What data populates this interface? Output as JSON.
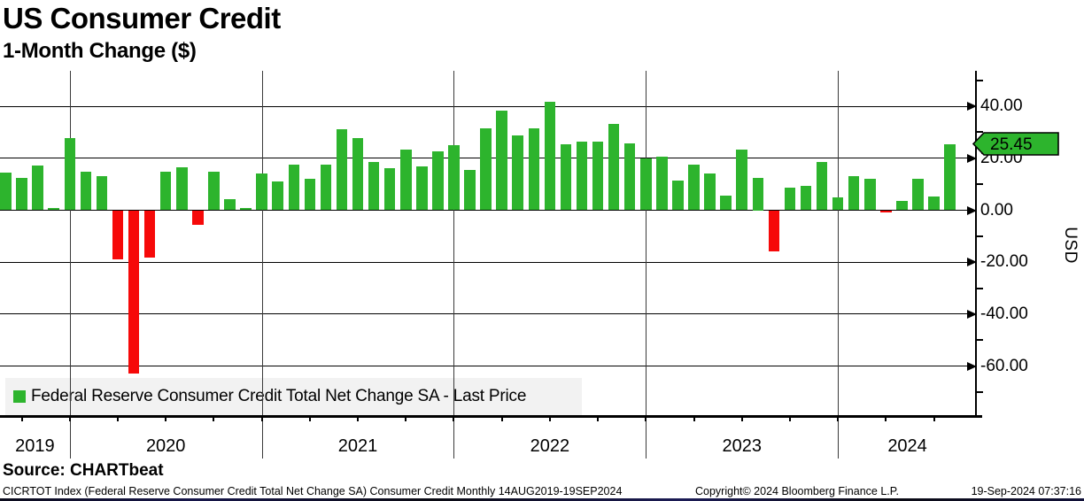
{
  "header": {
    "title": "US Consumer Credit",
    "subtitle": "1-Month Change ($)"
  },
  "legend": {
    "label": "Federal Reserve Consumer Credit Total Net Change SA - Last Price"
  },
  "y_axis": {
    "unit_label": "USD",
    "tick_labels": [
      "40.00",
      "20.00",
      "0.00",
      "-20.00",
      "-40.00",
      "-60.00"
    ],
    "tick_values": [
      40,
      20,
      0,
      -20,
      -40,
      -60
    ],
    "minor_tick_values": [
      50,
      30,
      10,
      -10,
      -30,
      -50,
      -70
    ]
  },
  "x_axis": {
    "year_labels": [
      "2019",
      "2020",
      "2021",
      "2022",
      "2023",
      "2024"
    ]
  },
  "last_price_badge": {
    "value": "25.45"
  },
  "footer": {
    "source": "Source: CHARTbeat",
    "description": "CICRTOT Index (Federal Reserve Consumer Credit Total Net Change SA) Consumer Credit  Monthly 14AUG2019-19SEP2024",
    "copyright": "Copyright© 2024 Bloomberg Finance L.P.",
    "timestamp": "19-Sep-2024 07:37:16"
  },
  "colors": {
    "positive": "#2db42d",
    "negative": "#f60909",
    "legend_background": "#f2f2f2",
    "badge_fill": "#2db42d"
  },
  "chart_data": {
    "type": "bar",
    "title": "US Consumer Credit",
    "subtitle": "1-Month Change ($)",
    "xlabel": "",
    "ylabel": "USD",
    "ylim": [
      -79,
      51
    ],
    "grid": true,
    "legend_position": "bottom-left",
    "series_name": "Federal Reserve Consumer Credit Total Net Change SA - Last Price",
    "last_price": 25.45,
    "frequency": "Monthly",
    "categories": [
      "Aug 2019",
      "Sep 2019",
      "Oct 2019",
      "Nov 2019",
      "Dec 2019",
      "Jan 2020",
      "Feb 2020",
      "Mar 2020",
      "Apr 2020",
      "May 2020",
      "Jun 2020",
      "Jul 2020",
      "Aug 2020",
      "Sep 2020",
      "Oct 2020",
      "Nov 2020",
      "Dec 2020",
      "Jan 2021",
      "Feb 2021",
      "Mar 2021",
      "Apr 2021",
      "May 2021",
      "Jun 2021",
      "Jul 2021",
      "Aug 2021",
      "Sep 2021",
      "Oct 2021",
      "Nov 2021",
      "Dec 2021",
      "Jan 2022",
      "Feb 2022",
      "Mar 2022",
      "Apr 2022",
      "May 2022",
      "Jun 2022",
      "Jul 2022",
      "Aug 2022",
      "Sep 2022",
      "Oct 2022",
      "Nov 2022",
      "Dec 2022",
      "Jan 2023",
      "Feb 2023",
      "Mar 2023",
      "Apr 2023",
      "May 2023",
      "Jun 2023",
      "Jul 2023",
      "Aug 2023",
      "Sep 2023",
      "Oct 2023",
      "Nov 2023",
      "Dec 2023",
      "Jan 2024",
      "Feb 2024",
      "Mar 2024",
      "Apr 2024",
      "May 2024",
      "Jun 2024",
      "Jul 2024"
    ],
    "values": [
      14.5,
      12.4,
      17.2,
      0.7,
      27.8,
      14.9,
      13.2,
      -18.9,
      -63.0,
      -18.1,
      14.9,
      16.5,
      -5.6,
      14.9,
      4.2,
      1.0,
      14.3,
      11.1,
      17.5,
      12.0,
      17.7,
      31.2,
      27.6,
      18.4,
      16.2,
      23.3,
      17.0,
      22.6,
      25.2,
      15.6,
      31.5,
      38.2,
      28.8,
      31.4,
      41.9,
      25.5,
      26.4,
      26.4,
      33.3,
      25.8,
      20.0,
      20.7,
      11.5,
      17.5,
      14.2,
      5.6,
      23.5,
      12.5,
      -15.8,
      8.7,
      9.4,
      18.4,
      4.9,
      13.0,
      12.2,
      -1.0,
      3.7,
      12.0,
      5.4,
      25.45
    ],
    "positive_color": "#2db42d",
    "negative_color": "#f60909"
  }
}
